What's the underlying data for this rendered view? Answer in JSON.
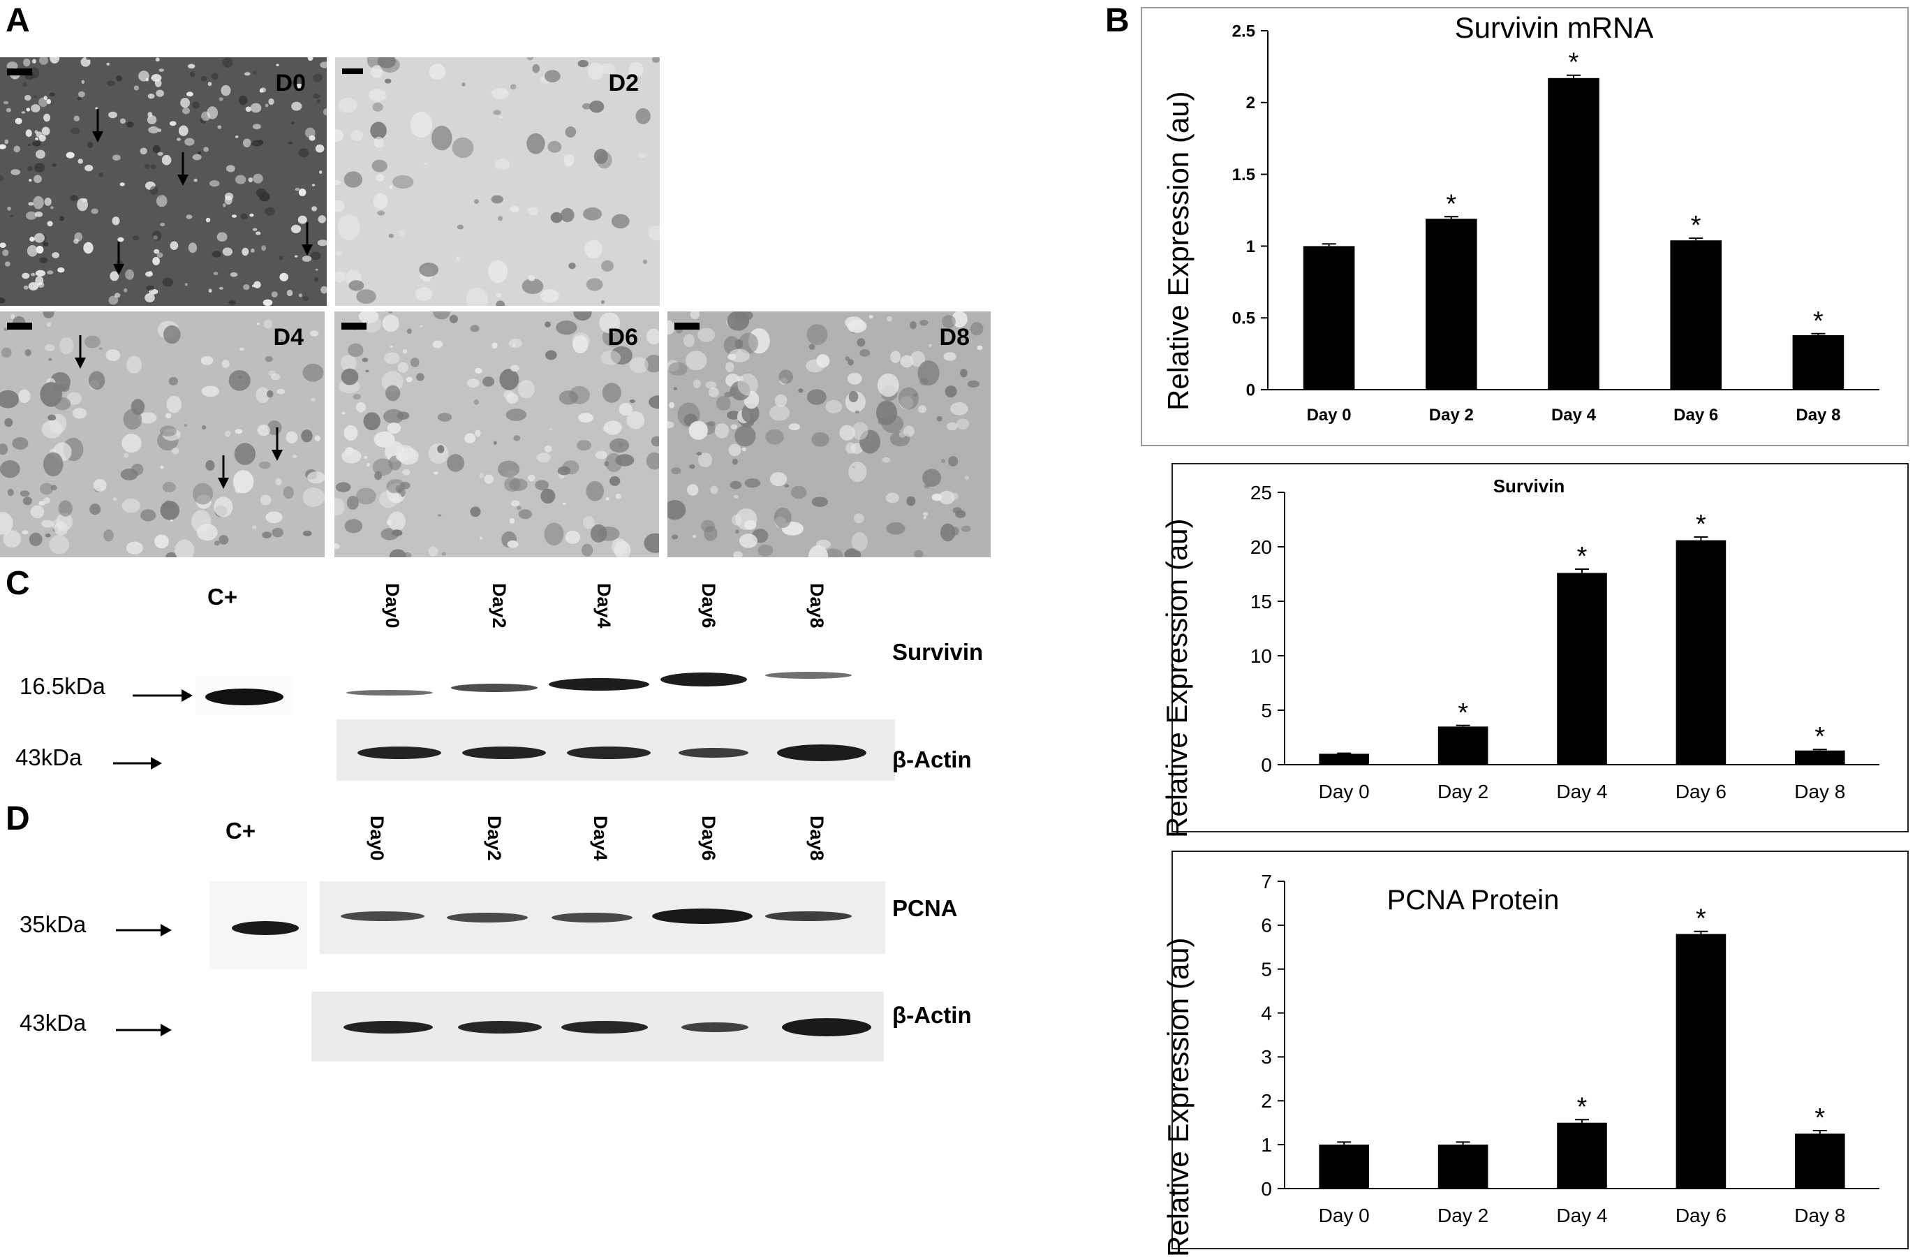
{
  "panels": {
    "a": "A",
    "b": "B",
    "c": "C",
    "d": "D"
  },
  "micrographs": [
    {
      "label": "D0"
    },
    {
      "label": "D2"
    },
    {
      "label": "D4"
    },
    {
      "label": "D6"
    },
    {
      "label": "D8"
    }
  ],
  "blot_c": {
    "control_label": "C+",
    "lanes": [
      "Day0",
      "Day2",
      "Day4",
      "Day6",
      "Day8"
    ],
    "rows": [
      {
        "protein": "Survivin",
        "kda": "16.5kDa"
      },
      {
        "protein": "β-Actin",
        "kda": "43kDa"
      }
    ]
  },
  "blot_d": {
    "control_label": "C+",
    "lanes": [
      "Day0",
      "Day2",
      "Day4",
      "Day6",
      "Day8"
    ],
    "rows": [
      {
        "protein": "PCNA",
        "kda": "35kDa"
      },
      {
        "protein": "β-Actin",
        "kda": "43kDa"
      }
    ]
  },
  "chart_data": [
    {
      "type": "bar",
      "title": "Survivin mRNA",
      "ylabel": "Relative Expression (au)",
      "categories": [
        "Day 0",
        "Day 2",
        "Day 4",
        "Day 6",
        "Day 8"
      ],
      "values": [
        1.0,
        1.19,
        2.17,
        1.04,
        0.38
      ],
      "errors": [
        0.015,
        0.015,
        0.02,
        0.015,
        0.01
      ],
      "significant": [
        false,
        true,
        true,
        true,
        true
      ],
      "significance_mark": "*",
      "yticks": [
        "0",
        "0.5",
        "1",
        "1.5",
        "2",
        "2.5"
      ],
      "ylim": [
        0,
        2.5
      ]
    },
    {
      "type": "bar",
      "title": "Survivin",
      "ylabel": "Relative Expression (au)",
      "categories": [
        "Day 0",
        "Day 2",
        "Day 4",
        "Day 6",
        "Day 8"
      ],
      "values": [
        1.0,
        3.5,
        17.6,
        20.6,
        1.3
      ],
      "errors": [
        0.05,
        0.1,
        0.35,
        0.3,
        0.1
      ],
      "significant": [
        false,
        true,
        true,
        true,
        true
      ],
      "significance_mark": "*",
      "yticks": [
        "0",
        "5",
        "10",
        "15",
        "20",
        "25"
      ],
      "ylim": [
        0,
        25
      ]
    },
    {
      "type": "bar",
      "title": "PCNA Protein",
      "ylabel": "Relative Expression (au)",
      "categories": [
        "Day 0",
        "Day 2",
        "Day 4",
        "Day 6",
        "Day 8"
      ],
      "values": [
        1.0,
        1.0,
        1.5,
        5.8,
        1.25
      ],
      "errors": [
        0.06,
        0.06,
        0.07,
        0.06,
        0.07
      ],
      "significant": [
        false,
        false,
        true,
        true,
        true
      ],
      "significance_mark": "*",
      "yticks": [
        "0",
        "1",
        "2",
        "3",
        "4",
        "5",
        "6",
        "7"
      ],
      "ylim": [
        0,
        7
      ]
    }
  ]
}
